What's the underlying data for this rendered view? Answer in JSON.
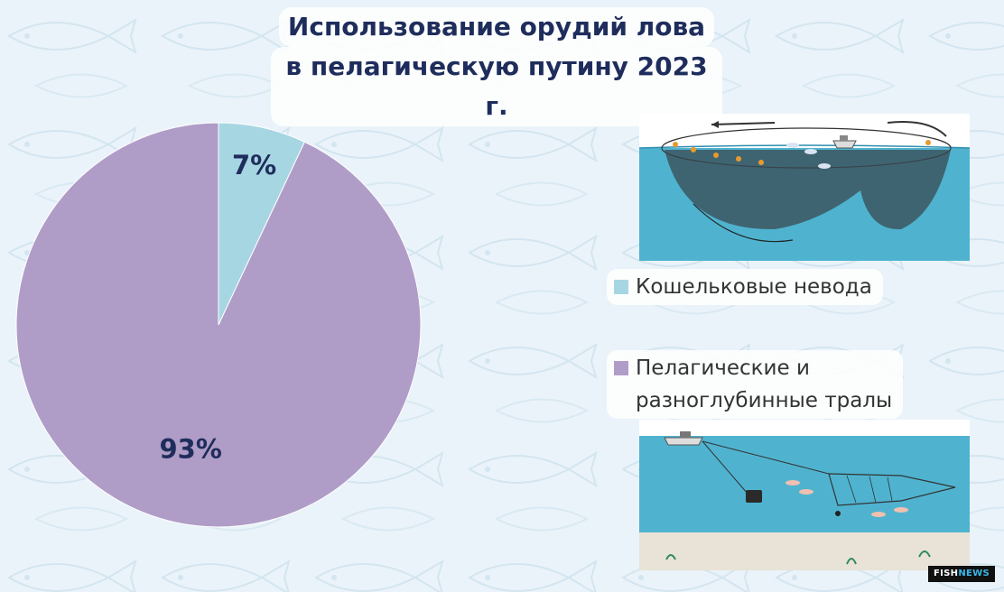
{
  "title": {
    "line1": "Использование орудий лова",
    "line2": "в пелагическую путину 2023 г."
  },
  "chart_data": {
    "type": "pie",
    "title": "Использование орудий лова в пелагическую путину 2023 г.",
    "categories": [
      "Кошельковые невода",
      "Пелагические и разноглубинные тралы"
    ],
    "values": [
      7,
      93
    ],
    "labels": [
      "7%",
      "93%"
    ],
    "colors": [
      "#a7d6e3",
      "#b09dc7"
    ],
    "legend_position": "right"
  },
  "legend": [
    {
      "label": "Кошельковые невода",
      "color": "#a7d6e3"
    },
    {
      "label_line1": "Пелагические и",
      "label_line2": "разноглубинные тралы",
      "color": "#b09dc7"
    }
  ],
  "images": {
    "purse_seine": "purse-seine-illustration",
    "trawl": "trawl-illustration"
  },
  "logo": {
    "part1": "FISH",
    "part2": "NEWS"
  }
}
